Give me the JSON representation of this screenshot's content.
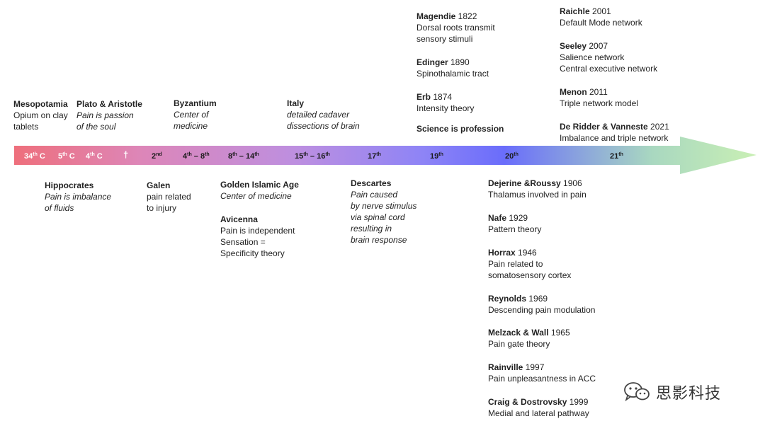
{
  "arrow": {
    "colors": [
      "#ee6f7c",
      "#dd86b8",
      "#bd8fe0",
      "#8e84f6",
      "#6a6dfb",
      "#a9d8c0",
      "#c9efb4"
    ]
  },
  "eras": {
    "e34": {
      "num": "34",
      "sup": "th",
      "suffix": " C"
    },
    "e5": {
      "num": "5",
      "sup": "th",
      "suffix": " C"
    },
    "e4": {
      "num": "4",
      "sup": "th",
      "suffix": " C"
    },
    "cross": "†",
    "e2": {
      "num": "2",
      "sup": "nd"
    },
    "e4_8": {
      "a": "4",
      "asup": "th",
      "dash": " – ",
      "b": "8",
      "bsup": "th"
    },
    "e8_14": {
      "a": "8",
      "asup": "th",
      "dash": " – ",
      "b": "14",
      "bsup": "th"
    },
    "e15_16": {
      "a": "15",
      "asup": "th",
      "dash": " – ",
      "b": "16",
      "bsup": "th"
    },
    "e17": {
      "num": "17",
      "sup": "th"
    },
    "e19": {
      "num": "19",
      "sup": "th"
    },
    "e20": {
      "num": "20",
      "sup": "th"
    },
    "e21": {
      "num": "21",
      "sup": "th"
    }
  },
  "top": {
    "mesopotamia": {
      "name": "Mesopotamia",
      "l1": "Opium on clay",
      "l2": "tablets"
    },
    "plato": {
      "name": "Plato & Aristotle",
      "l1": "Pain is passion",
      "l2": "of the soul"
    },
    "byzantium": {
      "name": "Byzantium",
      "l1": "Center of",
      "l2": "medicine"
    },
    "italy": {
      "name": "Italy",
      "l1": "detailed cadaver",
      "l2": "dissections of brain"
    },
    "magendie": {
      "name": "Magendie",
      "year": " 1822",
      "l1": "Dorsal roots transmit",
      "l2": "sensory stimuli"
    },
    "edinger": {
      "name": "Edinger",
      "year": " 1890",
      "l1": "Spinothalamic tract"
    },
    "erb": {
      "name": "Erb",
      "year": " 1874",
      "l1": "Intensity theory"
    },
    "science": {
      "name": "Science is profession"
    },
    "raichle": {
      "name": "Raichle",
      "year": " 2001",
      "l1": "Default Mode network"
    },
    "seeley": {
      "name": "Seeley",
      "year": " 2007",
      "l1": "Salience network",
      "l2": "Central executive network"
    },
    "menon": {
      "name": "Menon",
      "year": " 2011",
      "l1": "Triple network model"
    },
    "deridder": {
      "name": "De Ridder & Vanneste",
      "year": " 2021",
      "l1": "Imbalance and triple network"
    }
  },
  "bottom": {
    "hippocrates": {
      "name": "Hippocrates",
      "l1": "Pain is imbalance",
      "l2": "of fluids"
    },
    "galen": {
      "name": "Galen",
      "l1": "pain related",
      "l2": "to injury"
    },
    "islamic": {
      "name": "Golden Islamic Age",
      "l1": "Center of  medicine"
    },
    "avicenna": {
      "name": "Avicenna",
      "l1": "Pain is independent",
      "l2": "Sensation =",
      "l3": "Specificity theory"
    },
    "descartes": {
      "name": "Descartes",
      "l1": "Pain caused",
      "l2": "by nerve stimulus",
      "l3": "via spinal cord",
      "l4": "resulting in",
      "l5": "brain response"
    },
    "dejerine": {
      "name": "Dejerine &Roussy",
      "year": " 1906",
      "l1": "Thalamus involved in pain"
    },
    "nafe": {
      "name": "Nafe",
      "year": " 1929",
      "l1": "Pattern theory"
    },
    "horrax": {
      "name": "Horrax",
      "year": " 1946",
      "l1": "Pain related to",
      "l2": "somatosensory cortex"
    },
    "reynolds": {
      "name": "Reynolds",
      "year": " 1969",
      "l1": "Descending pain modulation"
    },
    "melzack": {
      "name": "Melzack & Wall",
      "year": " 1965",
      "l1": "Pain gate theory"
    },
    "rainville": {
      "name": "Rainville",
      "year": " 1997",
      "l1": "Pain unpleasantness in ACC"
    },
    "craig": {
      "name": "Craig & Dostrovsky",
      "year": " 1999",
      "l1": "Medial and lateral pathway"
    }
  },
  "watermark": {
    "text": "思影科技",
    "icon": "wechat-icon"
  }
}
